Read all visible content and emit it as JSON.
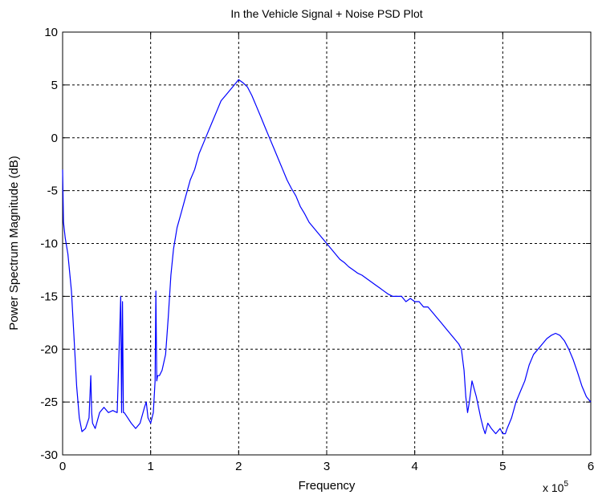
{
  "chart_data": {
    "type": "line",
    "title": "In the Vehicle Signal + Noise PSD Plot",
    "xlabel": "Frequency",
    "ylabel": "Power Spectrum Magnitude (dB)",
    "x_multiplier_label": "x 10",
    "x_multiplier_exponent": "5",
    "xlim": [
      0,
      6
    ],
    "ylim": [
      -30,
      10
    ],
    "xticks": [
      0,
      1,
      2,
      3,
      4,
      5,
      6
    ],
    "yticks": [
      -30,
      -25,
      -20,
      -15,
      -10,
      -5,
      0,
      5,
      10
    ],
    "xtick_labels": [
      "0",
      "1",
      "2",
      "3",
      "4",
      "5",
      "6"
    ],
    "ytick_labels": [
      "-30",
      "-25",
      "-20",
      "-15",
      "-10",
      "-5",
      "0",
      "5",
      "10"
    ],
    "grid": true,
    "line_color": "#0000ff",
    "series": [
      {
        "x": [
          0.0,
          0.01,
          0.03,
          0.06,
          0.1,
          0.13,
          0.16,
          0.19,
          0.22,
          0.26,
          0.3,
          0.32,
          0.33,
          0.34,
          0.37,
          0.42,
          0.47,
          0.52,
          0.57,
          0.62,
          0.66,
          0.67,
          0.68,
          0.69,
          0.7,
          0.74,
          0.78,
          0.83,
          0.88,
          0.93,
          0.95,
          0.97,
          1.0,
          1.03,
          1.05,
          1.06,
          1.07,
          1.08,
          1.1,
          1.13,
          1.17,
          1.2,
          1.23,
          1.26,
          1.3,
          1.35,
          1.4,
          1.45,
          1.5,
          1.55,
          1.6,
          1.65,
          1.7,
          1.75,
          1.8,
          1.85,
          1.9,
          1.95,
          2.0,
          2.05,
          2.1,
          2.15,
          2.2,
          2.25,
          2.3,
          2.35,
          2.4,
          2.45,
          2.5,
          2.55,
          2.6,
          2.65,
          2.7,
          2.75,
          2.8,
          2.85,
          2.9,
          2.95,
          3.0,
          3.05,
          3.1,
          3.15,
          3.2,
          3.25,
          3.3,
          3.35,
          3.4,
          3.45,
          3.5,
          3.55,
          3.6,
          3.65,
          3.7,
          3.75,
          3.8,
          3.85,
          3.9,
          3.95,
          4.0,
          4.05,
          4.1,
          4.15,
          4.2,
          4.25,
          4.3,
          4.35,
          4.4,
          4.45,
          4.5,
          4.53,
          4.56,
          4.58,
          4.6,
          4.62,
          4.65,
          4.7,
          4.75,
          4.78,
          4.8,
          4.83,
          4.87,
          4.92,
          4.97,
          5.0,
          5.03,
          5.05,
          5.1,
          5.15,
          5.2,
          5.25,
          5.3,
          5.35,
          5.4,
          5.45,
          5.5,
          5.55,
          5.6,
          5.65,
          5.7,
          5.75,
          5.8,
          5.85,
          5.9,
          5.95,
          6.0
        ],
        "values": [
          -3.0,
          -8.0,
          -9.5,
          -11.0,
          -14.5,
          -19.0,
          -23.5,
          -26.5,
          -27.8,
          -27.5,
          -26.5,
          -22.5,
          -26.0,
          -27.0,
          -27.5,
          -26.0,
          -25.5,
          -26.0,
          -25.8,
          -26.0,
          -15.0,
          -26.0,
          -15.5,
          -26.0,
          -26.0,
          -26.5,
          -27.0,
          -27.5,
          -27.0,
          -25.5,
          -25.0,
          -26.5,
          -27.0,
          -26.0,
          -23.0,
          -14.5,
          -23.0,
          -22.5,
          -22.5,
          -22.0,
          -20.5,
          -17.0,
          -13.0,
          -10.5,
          -8.5,
          -7.0,
          -5.5,
          -4.0,
          -3.0,
          -1.5,
          -0.5,
          0.5,
          1.5,
          2.5,
          3.5,
          4.0,
          4.5,
          5.0,
          5.5,
          5.2,
          4.8,
          4.0,
          3.0,
          2.0,
          1.0,
          0.0,
          -1.0,
          -2.0,
          -3.0,
          -4.0,
          -4.8,
          -5.5,
          -6.5,
          -7.2,
          -8.0,
          -8.5,
          -9.0,
          -9.5,
          -10.0,
          -10.5,
          -11.0,
          -11.5,
          -11.8,
          -12.2,
          -12.5,
          -12.8,
          -13.0,
          -13.3,
          -13.6,
          -13.9,
          -14.2,
          -14.5,
          -14.8,
          -15.0,
          -15.0,
          -15.0,
          -15.5,
          -15.2,
          -15.5,
          -15.5,
          -16.0,
          -16.0,
          -16.5,
          -17.0,
          -17.5,
          -18.0,
          -18.5,
          -19.0,
          -19.5,
          -20.0,
          -22.0,
          -24.5,
          -26.0,
          -25.0,
          -23.0,
          -24.5,
          -26.5,
          -27.5,
          -28.0,
          -27.0,
          -27.5,
          -28.0,
          -27.5,
          -28.0,
          -28.0,
          -27.5,
          -26.5,
          -25.0,
          -24.0,
          -23.0,
          -21.5,
          -20.5,
          -20.0,
          -19.5,
          -19.0,
          -18.7,
          -18.5,
          -18.7,
          -19.2,
          -20.0,
          -21.0,
          -22.2,
          -23.5,
          -24.5,
          -25.0
        ]
      }
    ]
  }
}
